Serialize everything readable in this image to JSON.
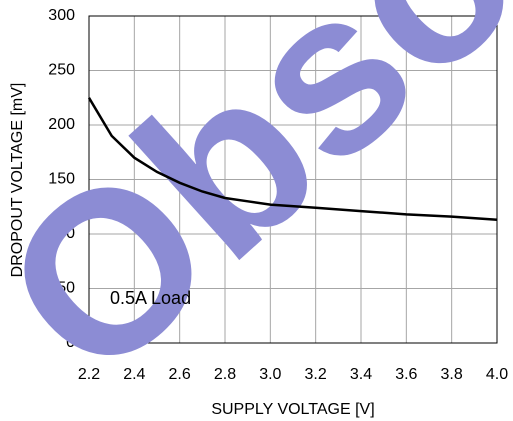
{
  "chart_data": {
    "type": "line",
    "x_label": "SUPPLY VOLTAGE [V]",
    "y_label": "DROPOUT VOLTAGE [mV]",
    "annotation": "0.5A Load",
    "watermark": "Obsolete",
    "x": [
      2.2,
      2.3,
      2.4,
      2.5,
      2.6,
      2.7,
      2.8,
      2.9,
      3.0,
      3.2,
      3.4,
      3.6,
      3.8,
      4.0
    ],
    "series": [
      {
        "color": "#000000",
        "values": [
          225,
          190,
          170,
          157,
          147,
          139,
          133,
          130,
          127,
          124,
          121,
          118,
          116,
          113
        ]
      }
    ],
    "xlim": [
      2.2,
      4.0
    ],
    "xticks": [
      2.2,
      2.4,
      2.6,
      2.8,
      {
        "value": 3.0,
        "label": "3.0"
      },
      3.2,
      3.4,
      3.6,
      3.8,
      {
        "value": 4.0,
        "label": "4.0"
      }
    ],
    "ylim": [
      0,
      300
    ],
    "yticks": [
      0,
      50,
      100,
      150,
      200,
      250,
      300
    ],
    "grid": true
  }
}
